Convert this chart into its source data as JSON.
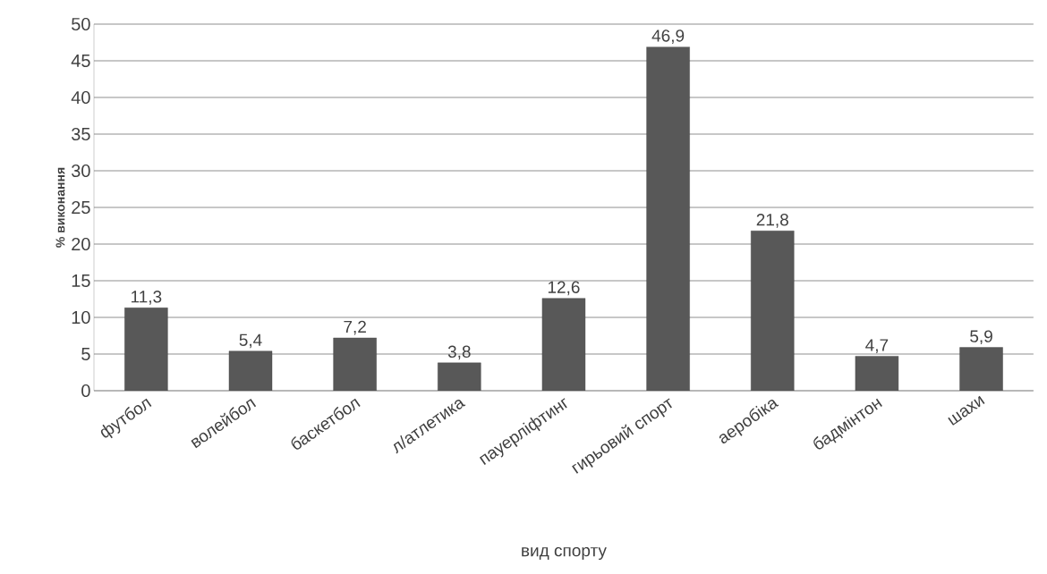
{
  "chart_data": {
    "type": "bar",
    "xlabel": "вид спорту",
    "ylabel": "% виконання",
    "categories": [
      "футбол",
      "волейбол",
      "баскетбол",
      "л/атлетика",
      "пауерліфтинг",
      "гирьовий спорт",
      "аеробіка",
      "бадмінтон",
      "шахи"
    ],
    "values": [
      11.3,
      5.4,
      7.2,
      3.8,
      12.6,
      46.9,
      21.8,
      4.7,
      5.9
    ],
    "value_labels": [
      "11,3",
      "5,4",
      "7,2",
      "3,8",
      "12,6",
      "46,9",
      "21,8",
      "4,7",
      "5,9"
    ],
    "color": "#585858",
    "ylim": [
      0,
      50
    ],
    "yticks": [
      0,
      5,
      10,
      15,
      20,
      25,
      30,
      35,
      40,
      45,
      50
    ],
    "grid": "y"
  }
}
